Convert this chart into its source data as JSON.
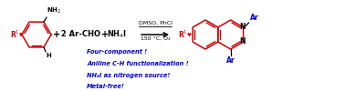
{
  "bg_color": "#ffffff",
  "red": "#cc0000",
  "black": "#000000",
  "blue": "#0000cc",
  "figsize": [
    3.78,
    1.0
  ],
  "dpi": 100,
  "conditions_line1": "DMSO, PhCl",
  "conditions_line2": "150 °C, O₂",
  "bullet_texts": [
    "Four-component !",
    "Aniline C-H functionalization !",
    "NH₄I as nitrogen source!",
    "Metal-free!"
  ]
}
